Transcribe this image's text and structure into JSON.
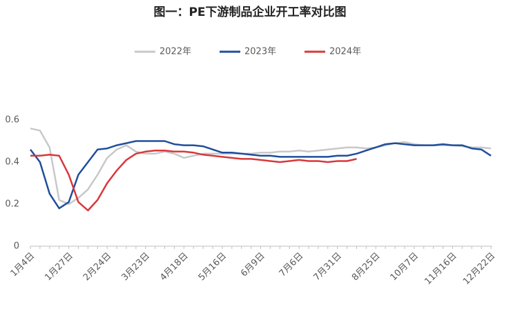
{
  "chart_data": {
    "type": "line",
    "title": "图一：PE下游制品企业开工率对比图",
    "categories": [
      "1月4日",
      null,
      null,
      null,
      "1月27日",
      null,
      null,
      null,
      "2月24日",
      null,
      null,
      null,
      "3月23日",
      null,
      null,
      null,
      "4月18日",
      null,
      null,
      null,
      "5月16日",
      null,
      null,
      null,
      "6月9日",
      null,
      null,
      null,
      "7月6日",
      null,
      null,
      null,
      "7月31日",
      null,
      null,
      null,
      "8月25日",
      null,
      null,
      null,
      "10月7日",
      null,
      null,
      null,
      "11月16日",
      null,
      null,
      null,
      "12月22日"
    ],
    "series": [
      {
        "name": "2022年",
        "color": "#c8c8c8",
        "values": [
          0.56,
          0.55,
          0.47,
          0.22,
          0.2,
          0.23,
          0.27,
          0.34,
          0.42,
          0.46,
          0.48,
          0.45,
          0.44,
          0.44,
          0.45,
          0.44,
          0.42,
          0.43,
          0.44,
          0.44,
          0.44,
          0.44,
          0.44,
          0.44,
          0.445,
          0.445,
          0.45,
          0.45,
          0.455,
          0.45,
          0.455,
          0.46,
          0.465,
          0.47,
          0.47,
          0.465,
          0.47,
          0.48,
          0.49,
          0.495,
          0.485,
          0.48,
          0.48,
          0.48,
          0.48,
          0.475,
          0.47,
          0.47,
          0.465
        ]
      },
      {
        "name": "2023年",
        "color": "#1f4e9c",
        "values": [
          0.46,
          0.4,
          0.25,
          0.18,
          0.21,
          0.34,
          0.4,
          0.46,
          0.465,
          0.48,
          0.49,
          0.5,
          0.5,
          0.5,
          0.5,
          0.485,
          0.48,
          0.48,
          0.475,
          0.46,
          0.445,
          0.445,
          0.44,
          0.435,
          0.43,
          0.43,
          0.425,
          0.425,
          0.425,
          0.425,
          0.425,
          0.425,
          0.43,
          0.43,
          0.44,
          0.455,
          0.47,
          0.485,
          0.49,
          0.485,
          0.48,
          0.48,
          0.48,
          0.485,
          0.48,
          0.48,
          0.465,
          0.46,
          0.43
        ]
      },
      {
        "name": "2024年",
        "color": "#d9373b",
        "values": [
          0.43,
          0.43,
          0.435,
          0.43,
          0.34,
          0.21,
          0.17,
          0.22,
          0.3,
          0.36,
          0.41,
          0.44,
          0.45,
          0.455,
          0.455,
          0.45,
          0.45,
          0.445,
          0.435,
          0.43,
          0.425,
          0.42,
          0.415,
          0.415,
          0.41,
          0.405,
          0.4,
          0.405,
          0.41,
          0.405,
          0.405,
          0.4,
          0.405,
          0.405,
          0.415,
          null,
          null,
          null,
          null,
          null,
          null,
          null,
          null,
          null,
          null,
          null,
          null,
          null,
          null
        ]
      }
    ],
    "ylim": [
      0,
      0.6
    ],
    "yticks": [
      0,
      0.2,
      0.4,
      0.6
    ]
  }
}
